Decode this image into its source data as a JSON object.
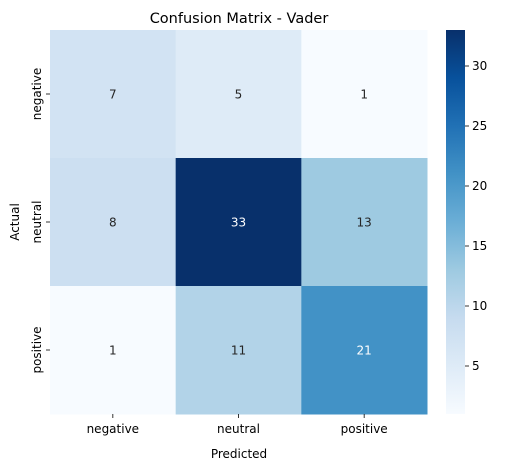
{
  "chart_data": {
    "type": "heatmap",
    "title": "Confusion Matrix - Vader",
    "xlabel": "Predicted",
    "ylabel": "Actual",
    "x_categories": [
      "negative",
      "neutral",
      "positive"
    ],
    "y_categories": [
      "negative",
      "neutral",
      "positive"
    ],
    "values": [
      [
        7,
        5,
        1
      ],
      [
        8,
        33,
        13
      ],
      [
        1,
        11,
        21
      ]
    ],
    "colormap": "Blues",
    "colorbar": {
      "min": 1,
      "max": 33,
      "ticks": [
        5,
        10,
        15,
        20,
        25,
        30
      ]
    }
  }
}
